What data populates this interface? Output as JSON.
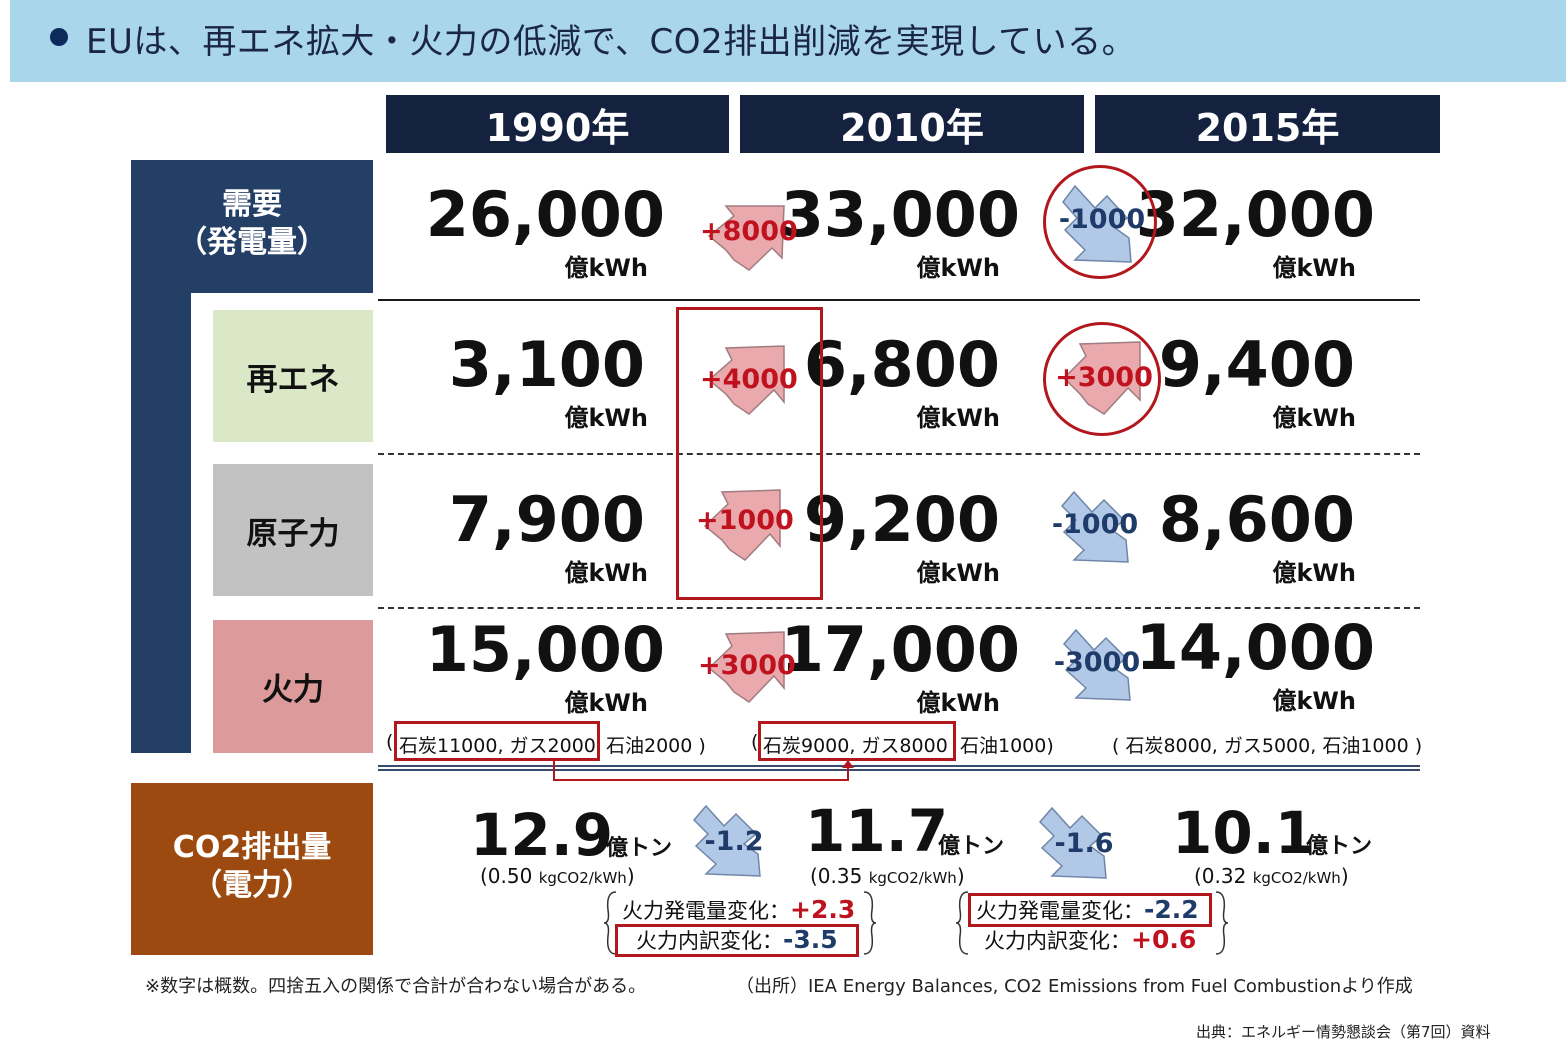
{
  "header": {
    "title": "EUは、再エネ拡大・火力の低減で、CO2排出削減を実現している。"
  },
  "years": [
    "1990年",
    "2010年",
    "2015年"
  ],
  "labels": {
    "demand_line1": "需要",
    "demand_line2": "（発電量）",
    "renew": "再エネ",
    "nuclear": "原子力",
    "thermal": "火力",
    "co2_line1": "CO2排出量",
    "co2_line2": "（電力）"
  },
  "unit": "億kWh",
  "rows": {
    "demand": {
      "values": [
        "26,000",
        "33,000",
        "32,000"
      ],
      "deltas": [
        "+8000",
        "-1000"
      ]
    },
    "renew": {
      "values": [
        "3,100",
        "6,800",
        "9,400"
      ],
      "deltas": [
        "+4000",
        "+3000"
      ]
    },
    "nuclear": {
      "values": [
        "7,900",
        "9,200",
        "8,600"
      ],
      "deltas": [
        "+1000",
        "-1000"
      ]
    },
    "thermal": {
      "values": [
        "15,000",
        "17,000",
        "14,000"
      ],
      "deltas": [
        "+3000",
        "-3000"
      ]
    }
  },
  "thermal_breakdown": {
    "y1990_open": "(",
    "y1990_boxed": "石炭11000, ガス2000",
    "y1990_rest": "石油2000 )",
    "y2010_open": "(",
    "y2010_boxed": "石炭9000, ガス8000",
    "y2010_rest": "石油1000)",
    "y2015": "( 石炭8000, ガス5000, 石油1000 )"
  },
  "co2": {
    "values": [
      "12.9",
      "11.7",
      "10.1"
    ],
    "unit": "億トン",
    "deltas": [
      "-1.2",
      "-1.6"
    ],
    "intensity_values": [
      "(0.50",
      "(0.35",
      "(0.32"
    ],
    "intensity_unit": "kgCO2/kWh",
    "intensity_close": ")"
  },
  "changes": {
    "a_label1": "火力発電量変化：",
    "a_value1": "+2.3",
    "a_label2": "火力内訳変化：",
    "a_value2": "-3.5",
    "b_label1": "火力発電量変化：",
    "b_value1": "-2.2",
    "b_label2": "火力内訳変化：",
    "b_value2": "+0.6"
  },
  "footnote": "※数字は概数。四捨五入の関係で合計が合わない場合がある。",
  "source_note": "（出所）IEA Energy Balances, CO2 Emissions from Fuel  Combustionより作成",
  "credit": "出典：エネルギー情勢懇談会（第7回）資料",
  "colors": {
    "banner": "#a9d6ea",
    "header_navy": "#14223f",
    "side_navy": "#243f66",
    "renew_box": "#dbe8c8",
    "nuclear_box": "#c2c2c2",
    "thermal_box": "#dd9a9a",
    "co2_box": "#9c4a0f",
    "up_arrow": "#e9a9ad",
    "down_arrow": "#b1c9e6",
    "accent_red": "#c0111f"
  }
}
